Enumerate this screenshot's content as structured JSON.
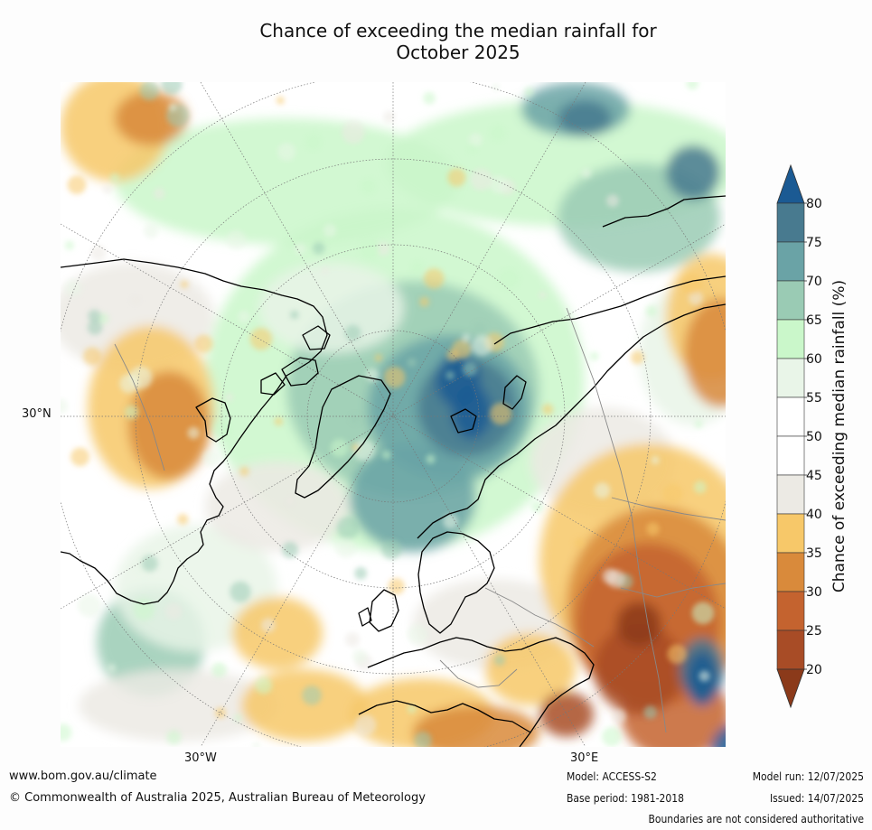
{
  "title": {
    "line1": "Chance of exceeding the median rainfall for",
    "line2": "October 2025"
  },
  "map_labels": {
    "lat_30n": "30°N",
    "lon_30w": "30°W",
    "lon_30e": "30°E"
  },
  "colorbar": {
    "label": "Chance of exceeding median rainfall (%)",
    "ticks": [
      "20",
      "25",
      "30",
      "35",
      "40",
      "45",
      "50",
      "55",
      "60",
      "65",
      "70",
      "75",
      "80"
    ],
    "bins": [
      {
        "range": "<20",
        "color": "#8b3a1a"
      },
      {
        "range": "20-25",
        "color": "#a84c26"
      },
      {
        "range": "25-30",
        "color": "#c4632f"
      },
      {
        "range": "30-35",
        "color": "#d98a3b"
      },
      {
        "range": "35-40",
        "color": "#f7c869"
      },
      {
        "range": "40-45",
        "color": "#eceae4"
      },
      {
        "range": "45-50",
        "color": "#ffffff"
      },
      {
        "range": "50-55",
        "color": "#ffffff"
      },
      {
        "range": "55-60",
        "color": "#e9f5e8"
      },
      {
        "range": "60-65",
        "color": "#caf7ca"
      },
      {
        "range": "65-70",
        "color": "#9acbb4"
      },
      {
        "range": "70-75",
        "color": "#6aa3a6"
      },
      {
        "range": "75-80",
        "color": "#487a8f"
      },
      {
        "range": ">80",
        "color": "#1b5a93"
      }
    ]
  },
  "footer": {
    "website": "www.bom.gov.au/climate",
    "copyright": "© Commonwealth of Australia 2025, Australian Bureau of Meteorology",
    "model": "Model: ACCESS-S2",
    "base_period": "Base period: 1981-2018",
    "model_run": "Model run: 12/07/2025",
    "issued": "Issued: 14/07/2025",
    "disclaimer": "Boundaries are not considered authoritative"
  }
}
